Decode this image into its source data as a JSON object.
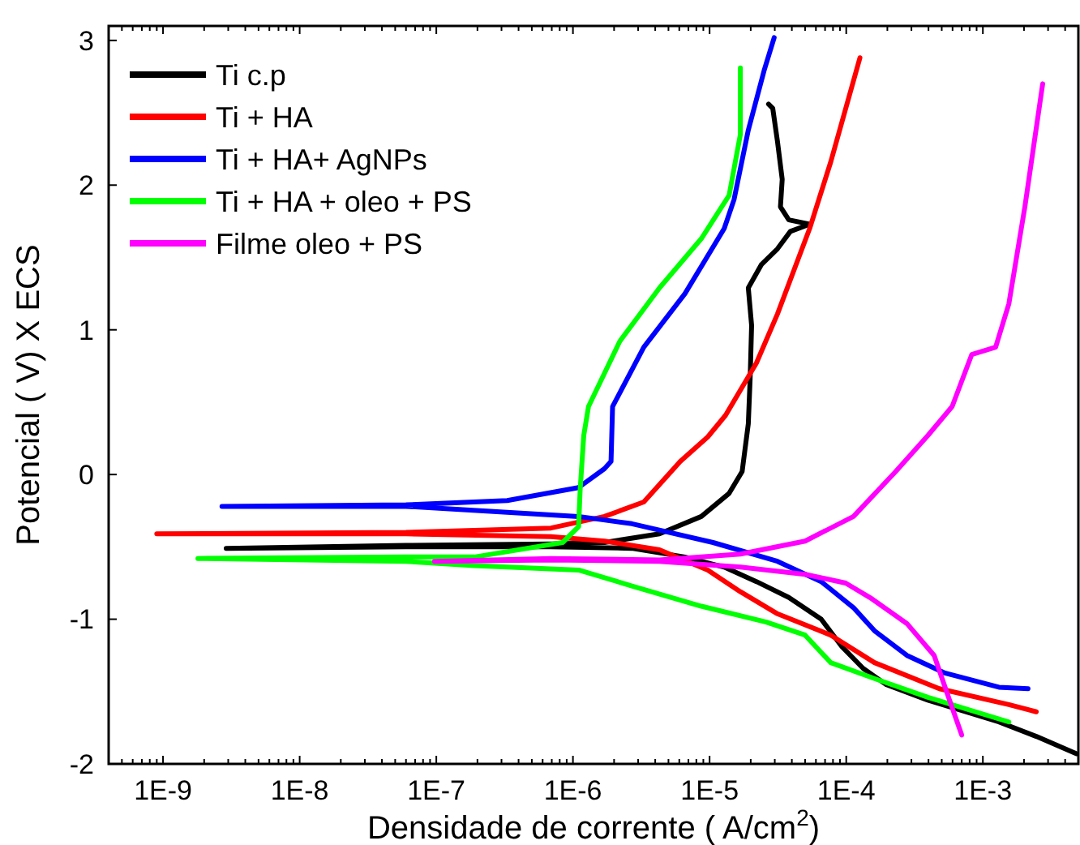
{
  "chart_data": {
    "type": "line",
    "xlabel": "Densidade de corrente ( A/cm$^{2}$)",
    "ylabel": "Potencial ( V) X ECS",
    "log": "x",
    "xlim": [
      4e-10,
      0.005
    ],
    "ylim": [
      -2,
      3.1
    ],
    "xticks": [
      {
        "value": 1e-09,
        "label": "1E-9"
      },
      {
        "value": 1e-08,
        "label": "1E-8"
      },
      {
        "value": 1e-07,
        "label": "1E-7"
      },
      {
        "value": 1e-06,
        "label": "1E-6"
      },
      {
        "value": 1e-05,
        "label": "1E-5"
      },
      {
        "value": 0.0001,
        "label": "1E-4"
      },
      {
        "value": 0.001,
        "label": "1E-3"
      }
    ],
    "yticks": [
      -2,
      -1,
      0,
      1,
      2,
      3
    ],
    "grid": false,
    "legend": "top left",
    "marker": "none",
    "line_style": "solid",
    "series": [
      {
        "name": "Ti c.p",
        "color": "#000000",
        "x": [
          0.00485,
          0.00246,
          0.00131,
          0.000396,
          0.000195,
          0.000133,
          9.3e-05,
          6.56e-05,
          3.8e-05,
          2.2e-05,
          1.28e-05,
          6.6e-06,
          2.7e-06,
          6.9e-07,
          6e-08,
          2.9e-09,
          6e-08,
          6.9e-07,
          1.7e-06,
          4.3e-06,
          8.7e-06,
          1.39e-05,
          1.73e-05,
          1.92e-05,
          1.98e-05,
          2.03e-05,
          1.92e-05,
          2.39e-05,
          3.14e-05,
          3.9e-05,
          5.4e-05,
          3.8e-05,
          3.3e-05,
          3.4e-05,
          3.14e-05,
          2.9e-05,
          2.7e-05
        ],
        "values": [
          -1.93,
          -1.81,
          -1.71,
          -1.56,
          -1.45,
          -1.34,
          -1.19,
          -1.0,
          -0.85,
          -0.74,
          -0.64,
          -0.57,
          -0.51,
          -0.5,
          -0.5,
          -0.51,
          -0.49,
          -0.48,
          -0.47,
          -0.41,
          -0.29,
          -0.13,
          0.02,
          0.35,
          0.66,
          1.03,
          1.29,
          1.45,
          1.56,
          1.68,
          1.73,
          1.76,
          1.85,
          2.04,
          2.3,
          2.53,
          2.56
        ]
      },
      {
        "name": "Ti + HA",
        "color": "#ff0000",
        "x": [
          0.00246,
          0.00155,
          0.00048,
          0.000161,
          7.7e-05,
          3.1e-05,
          1.68e-05,
          9.7e-06,
          4.3e-06,
          1.7e-06,
          6.9e-07,
          6e-08,
          9e-10,
          6e-08,
          6.9e-07,
          1.7e-06,
          3.3e-06,
          6.1e-06,
          9.7e-06,
          1.31e-05,
          2.2e-05,
          3.14e-05,
          5.4e-05,
          7.7e-05,
          0.000126
        ],
        "values": [
          -1.64,
          -1.59,
          -1.48,
          -1.3,
          -1.11,
          -0.96,
          -0.81,
          -0.66,
          -0.52,
          -0.46,
          -0.43,
          -0.41,
          -0.41,
          -0.4,
          -0.37,
          -0.29,
          -0.19,
          0.09,
          0.26,
          0.41,
          0.77,
          1.11,
          1.7,
          2.16,
          2.88
        ]
      },
      {
        "name": "Ti + HA+ AgNPs",
        "color": "#0000ff",
        "x": [
          0.00214,
          0.00131,
          0.00052,
          0.000278,
          0.000161,
          0.000113,
          6.56e-05,
          3.14e-05,
          1.06e-05,
          2.7e-06,
          1.1e-06,
          6e-08,
          2.7e-09,
          6e-08,
          3.3e-07,
          1.1e-06,
          1.7e-06,
          1.9e-06,
          1.95e-06,
          3.3e-06,
          6.6e-06,
          1.28e-05,
          1.51e-05,
          1.92e-05,
          2.52e-05,
          2.97e-05
        ],
        "values": [
          -1.48,
          -1.47,
          -1.37,
          -1.25,
          -1.08,
          -0.92,
          -0.74,
          -0.6,
          -0.47,
          -0.34,
          -0.29,
          -0.22,
          -0.22,
          -0.21,
          -0.18,
          -0.09,
          0.04,
          0.09,
          0.47,
          0.88,
          1.25,
          1.7,
          1.9,
          2.38,
          2.8,
          3.02
        ]
      },
      {
        "name": "Ti + HA + oleo + PS",
        "color": "#00ff00",
        "x": [
          0.00155,
          0.000396,
          0.000161,
          7.7e-05,
          5e-05,
          2.6e-05,
          8.7e-06,
          2.7e-06,
          1.1e-06,
          1.9e-07,
          6e-08,
          1.8e-09,
          6e-08,
          1.9e-07,
          8.4e-07,
          1.1e-06,
          1.13e-06,
          1.2e-06,
          1.3e-06,
          2.2e-06,
          4.3e-06,
          8.7e-06,
          1.39e-05,
          1.68e-05,
          1.68e-05
        ],
        "values": [
          -1.71,
          -1.54,
          -1.41,
          -1.3,
          -1.11,
          -1.02,
          -0.91,
          -0.77,
          -0.66,
          -0.63,
          -0.6,
          -0.58,
          -0.57,
          -0.57,
          -0.47,
          -0.36,
          -0.1,
          0.27,
          0.47,
          0.92,
          1.29,
          1.63,
          1.93,
          2.35,
          2.81
        ]
      },
      {
        "name": "Filme oleo + PS",
        "color": "#ff00ff",
        "x": [
          0.0007,
          0.00058,
          0.00044,
          0.000278,
          0.000149,
          9.9e-05,
          5e-05,
          1.68e-05,
          4.3e-06,
          6.9e-07,
          9.7e-08,
          6.9e-07,
          4.3e-06,
          1.68e-05,
          5e-05,
          0.000113,
          0.00023,
          0.000396,
          0.000596,
          0.00083,
          0.00124,
          0.00155,
          0.00203,
          0.00274
        ],
        "values": [
          -1.8,
          -1.58,
          -1.25,
          -1.03,
          -0.85,
          -0.75,
          -0.69,
          -0.64,
          -0.6,
          -0.59,
          -0.6,
          -0.58,
          -0.59,
          -0.55,
          -0.46,
          -0.29,
          0.02,
          0.27,
          0.47,
          0.83,
          0.88,
          1.18,
          1.85,
          2.7
        ]
      }
    ]
  }
}
